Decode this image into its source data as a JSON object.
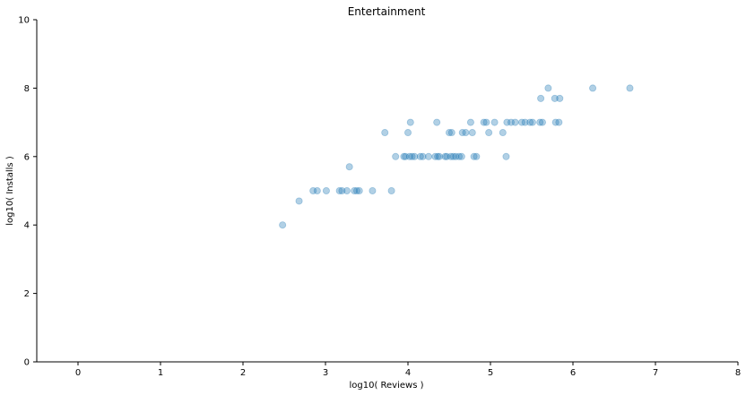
{
  "chart_data": {
    "type": "scatter",
    "title": "Entertainment",
    "xlabel": "log10( Reviews )",
    "ylabel": "log10( Installs )",
    "xlim": [
      -0.5,
      8
    ],
    "ylim": [
      0,
      10
    ],
    "xticks": [
      0,
      1,
      2,
      3,
      4,
      5,
      6,
      7,
      8
    ],
    "yticks": [
      0,
      2,
      4,
      6,
      8,
      10
    ],
    "grid": false,
    "marker_color": "#1f77b4",
    "marker_alpha": 0.35,
    "points": [
      [
        2.48,
        4.0
      ],
      [
        2.68,
        4.7
      ],
      [
        2.85,
        5.0
      ],
      [
        2.9,
        5.0
      ],
      [
        3.01,
        5.0
      ],
      [
        3.17,
        5.0
      ],
      [
        3.2,
        5.0
      ],
      [
        3.26,
        5.0
      ],
      [
        3.35,
        5.0
      ],
      [
        3.38,
        5.0
      ],
      [
        3.41,
        5.0
      ],
      [
        3.57,
        5.0
      ],
      [
        3.8,
        5.0
      ],
      [
        3.29,
        5.7
      ],
      [
        3.85,
        6.0
      ],
      [
        3.95,
        6.0
      ],
      [
        3.97,
        6.0
      ],
      [
        4.02,
        6.0
      ],
      [
        4.05,
        6.0
      ],
      [
        4.08,
        6.0
      ],
      [
        4.15,
        6.0
      ],
      [
        4.18,
        6.0
      ],
      [
        4.25,
        6.0
      ],
      [
        4.33,
        6.0
      ],
      [
        4.36,
        6.0
      ],
      [
        4.38,
        6.0
      ],
      [
        4.45,
        6.0
      ],
      [
        4.47,
        6.0
      ],
      [
        4.52,
        6.0
      ],
      [
        4.55,
        6.0
      ],
      [
        4.58,
        6.0
      ],
      [
        4.62,
        6.0
      ],
      [
        4.65,
        6.0
      ],
      [
        4.8,
        6.0
      ],
      [
        4.83,
        6.0
      ],
      [
        5.19,
        6.0
      ],
      [
        3.72,
        6.7
      ],
      [
        4.0,
        6.7
      ],
      [
        4.5,
        6.7
      ],
      [
        4.53,
        6.7
      ],
      [
        4.66,
        6.7
      ],
      [
        4.7,
        6.7
      ],
      [
        4.78,
        6.7
      ],
      [
        4.98,
        6.7
      ],
      [
        5.15,
        6.7
      ],
      [
        4.03,
        7.0
      ],
      [
        4.35,
        7.0
      ],
      [
        4.76,
        7.0
      ],
      [
        4.92,
        7.0
      ],
      [
        4.95,
        7.0
      ],
      [
        5.05,
        7.0
      ],
      [
        5.2,
        7.0
      ],
      [
        5.25,
        7.0
      ],
      [
        5.3,
        7.0
      ],
      [
        5.38,
        7.0
      ],
      [
        5.42,
        7.0
      ],
      [
        5.48,
        7.0
      ],
      [
        5.51,
        7.0
      ],
      [
        5.6,
        7.0
      ],
      [
        5.63,
        7.0
      ],
      [
        5.79,
        7.0
      ],
      [
        5.83,
        7.0
      ],
      [
        5.61,
        7.7
      ],
      [
        5.78,
        7.7
      ],
      [
        5.84,
        7.7
      ],
      [
        5.7,
        8.0
      ],
      [
        6.24,
        8.0
      ],
      [
        6.69,
        8.0
      ]
    ]
  }
}
